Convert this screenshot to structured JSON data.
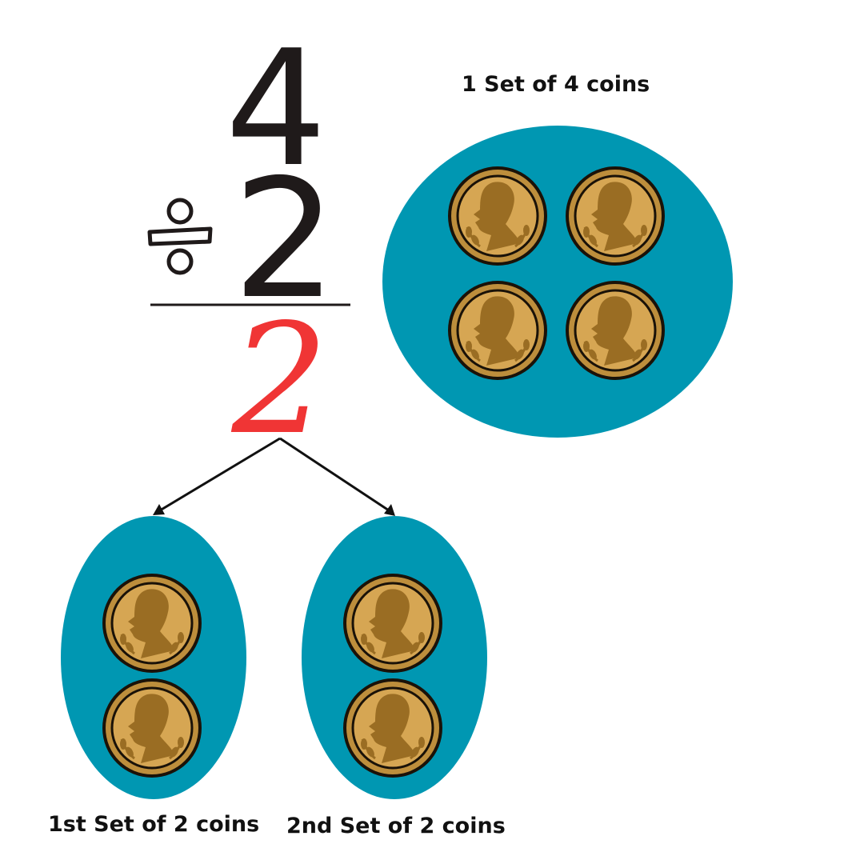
{
  "problem": {
    "dividend": "4",
    "divisor": "2",
    "quotient": "2",
    "operator_icon": "division-sign-icon"
  },
  "groups": {
    "whole": {
      "label": "1 Set of 4 coins",
      "coin_count": 4
    },
    "first": {
      "label": "1st Set of 2 coins",
      "coin_count": 2
    },
    "second": {
      "label": "2nd Set of 2 coins",
      "coin_count": 2
    }
  },
  "colors": {
    "ink": "#1f1a1a",
    "quotient": "#f03535",
    "oval": "#0097b2",
    "coin_edge": "#bd8e3c",
    "coin_face": "#d6a653",
    "coin_relief": "#9a6d23"
  },
  "icons": [
    "coin-icon",
    "arrow-icon"
  ]
}
